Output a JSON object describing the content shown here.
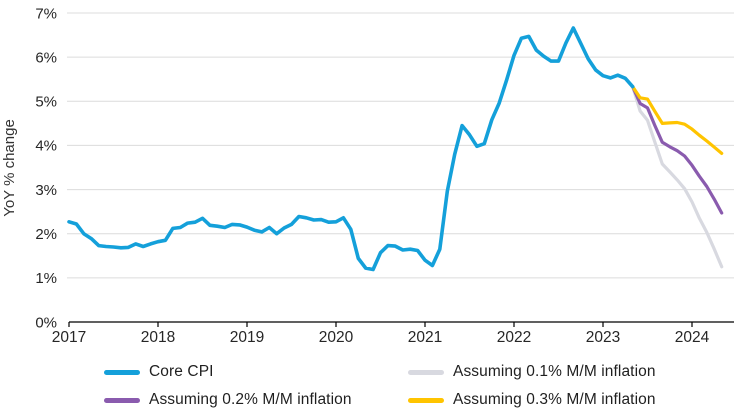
{
  "chart_data": {
    "type": "line",
    "ylabel": "YoY % change",
    "xlabel": "",
    "ylim": [
      0,
      7
    ],
    "y_ticks": [
      "0%",
      "1%",
      "2%",
      "3%",
      "4%",
      "5%",
      "6%",
      "7%"
    ],
    "x_ticks": [
      "2017",
      "2018",
      "2019",
      "2020",
      "2021",
      "2022",
      "2023",
      "2024"
    ],
    "grid": "horizontal-only",
    "legend_position": "bottom",
    "x_unit": "monthly points, index 0 = Jan 2017",
    "colors": {
      "core_cpi": "#14A0DA",
      "assume_01": "#D8D9E0",
      "assume_02": "#8A5BAE",
      "assume_03": "#FFC400",
      "gridline": "#DCDCDC",
      "axis": "#000000",
      "tick_text": "#262626"
    },
    "series": [
      {
        "key": "line-assuming-0-1",
        "name": "Assuming 0.1% M/M inflation",
        "color": "#D8D9E0",
        "width": 3.2,
        "start_index": 76,
        "values": [
          5.33,
          4.78,
          4.57,
          4.07,
          3.58,
          3.4,
          3.22,
          3.02,
          2.72,
          2.35,
          2.03,
          1.65,
          1.25
        ]
      },
      {
        "key": "line-assuming-0-2",
        "name": "Assuming 0.2% M/M inflation",
        "color": "#8A5BAE",
        "width": 3.2,
        "start_index": 76,
        "values": [
          5.33,
          4.95,
          4.85,
          4.45,
          4.07,
          3.97,
          3.88,
          3.76,
          3.55,
          3.3,
          3.07,
          2.78,
          2.47
        ]
      },
      {
        "key": "line-assuming-0-3",
        "name": "Assuming 0.3% M/M inflation",
        "color": "#FFC400",
        "width": 3.2,
        "start_index": 76,
        "values": [
          5.33,
          5.08,
          5.05,
          4.77,
          4.5,
          4.51,
          4.52,
          4.48,
          4.37,
          4.23,
          4.1,
          3.96,
          3.82
        ]
      },
      {
        "key": "line-core-cpi",
        "name": "Core CPI",
        "color": "#14A0DA",
        "width": 3.6,
        "start_index": 0,
        "values": [
          2.27,
          2.22,
          2.0,
          1.89,
          1.73,
          1.71,
          1.7,
          1.68,
          1.69,
          1.77,
          1.71,
          1.77,
          1.82,
          1.85,
          2.12,
          2.14,
          2.24,
          2.26,
          2.35,
          2.19,
          2.17,
          2.14,
          2.21,
          2.2,
          2.15,
          2.08,
          2.04,
          2.14,
          2.0,
          2.13,
          2.21,
          2.39,
          2.36,
          2.31,
          2.32,
          2.26,
          2.27,
          2.36,
          2.1,
          1.44,
          1.22,
          1.19,
          1.57,
          1.73,
          1.72,
          1.63,
          1.65,
          1.62,
          1.4,
          1.28,
          1.65,
          2.96,
          3.8,
          4.45,
          4.24,
          3.98,
          4.04,
          4.58,
          4.96,
          5.48,
          6.04,
          6.43,
          6.47,
          6.16,
          6.02,
          5.91,
          5.91,
          6.32,
          6.66,
          6.31,
          5.96,
          5.71,
          5.58,
          5.53,
          5.59,
          5.52,
          5.33
        ]
      }
    ],
    "legend": [
      {
        "label": "Core CPI",
        "color": "#14A0DA"
      },
      {
        "label": "Assuming 0.1% M/M inflation",
        "color": "#D8D9E0"
      },
      {
        "label": "Assuming 0.2% M/M inflation",
        "color": "#8A5BAE"
      },
      {
        "label": "Assuming 0.3% M/M inflation",
        "color": "#FFC400"
      }
    ]
  }
}
